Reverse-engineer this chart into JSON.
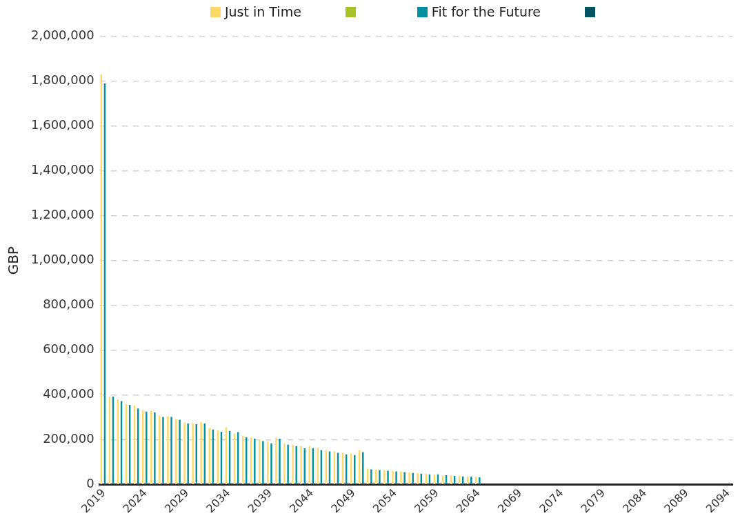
{
  "chart_data": {
    "type": "bar",
    "ylabel": "GBP",
    "categories": [
      "2019",
      null,
      null,
      null,
      null,
      "2024",
      null,
      null,
      null,
      null,
      "2029",
      null,
      null,
      null,
      null,
      "2034",
      null,
      null,
      null,
      null,
      "2039",
      null,
      null,
      null,
      null,
      "2044",
      null,
      null,
      null,
      null,
      "2049",
      null,
      null,
      null,
      null,
      "2054",
      null,
      null,
      null,
      null,
      "2059",
      null,
      null,
      null,
      null,
      "2064",
      null,
      null,
      null,
      null,
      "2069",
      null,
      null,
      null,
      null,
      "2074",
      null,
      null,
      null,
      null,
      "2079",
      null,
      null,
      null,
      null,
      "2084",
      null,
      null,
      null,
      null,
      "2089",
      null,
      null,
      null,
      null,
      "2094"
    ],
    "series": [
      {
        "name": "Just in Time",
        "color": "#ffd966",
        "values": [
          1830000,
          393000,
          380000,
          360000,
          353000,
          333000,
          330000,
          309000,
          305000,
          291000,
          277000,
          273000,
          280000,
          253000,
          243000,
          256000,
          228000,
          218000,
          211000,
          199000,
          192000,
          210000,
          185000,
          178000,
          172000,
          172000,
          165000,
          154000,
          148000,
          142000,
          139000,
          154000,
          71000,
          68000,
          65000,
          62000,
          59000,
          56000,
          52000,
          49000,
          46000,
          42000,
          42000,
          39000,
          36000,
          36000,
          null,
          null,
          null,
          null,
          null,
          null,
          null,
          null,
          null,
          null,
          null,
          null,
          null,
          null,
          null,
          null,
          null,
          null,
          null,
          null,
          null,
          null,
          null,
          null,
          null,
          null,
          null,
          null,
          null,
          null
        ]
      },
      {
        "color": "#a9c22a",
        "values": [
          null,
          null,
          null,
          null,
          null,
          null,
          null,
          null,
          null,
          null,
          null,
          null,
          null,
          null,
          null,
          null,
          null,
          null,
          null,
          null,
          null,
          null,
          null,
          null,
          null,
          null,
          null,
          null,
          null,
          null,
          null,
          null,
          null,
          null,
          null,
          null,
          null,
          null,
          null,
          null,
          null,
          null,
          null,
          null,
          null,
          null,
          null,
          null,
          null,
          null,
          null,
          null,
          null,
          null,
          null,
          null,
          null,
          null,
          null,
          null,
          null,
          null,
          null,
          null,
          null,
          null,
          null,
          null,
          null,
          null,
          null,
          null,
          null,
          null,
          null,
          null
        ]
      },
      {
        "name": "Fit for the Future",
        "color": "#00909e",
        "values": [
          1790000,
          393000,
          373000,
          356000,
          340000,
          326000,
          323000,
          302000,
          302000,
          290000,
          273000,
          270000,
          273000,
          246000,
          236000,
          240000,
          234000,
          211000,
          205000,
          194000,
          184000,
          204000,
          178000,
          172000,
          162000,
          162000,
          154000,
          148000,
          142000,
          135000,
          132000,
          145000,
          68000,
          65000,
          62000,
          59000,
          56000,
          52000,
          49000,
          46000,
          46000,
          42000,
          39000,
          36000,
          36000,
          33000,
          null,
          null,
          null,
          null,
          null,
          null,
          null,
          null,
          null,
          null,
          null,
          null,
          null,
          null,
          null,
          null,
          null,
          null,
          null,
          null,
          null,
          null,
          null,
          null,
          null,
          null,
          null,
          null,
          null,
          null
        ]
      },
      {
        "color": "#00535f",
        "values": [
          null,
          null,
          null,
          null,
          null,
          null,
          null,
          null,
          null,
          null,
          null,
          null,
          null,
          null,
          null,
          null,
          null,
          null,
          null,
          null,
          null,
          null,
          null,
          null,
          null,
          null,
          null,
          null,
          null,
          null,
          null,
          null,
          null,
          null,
          null,
          null,
          null,
          null,
          null,
          null,
          null,
          null,
          null,
          null,
          null,
          null,
          null,
          null,
          null,
          null,
          null,
          null,
          null,
          null,
          null,
          null,
          null,
          null,
          null,
          null,
          null,
          null,
          null,
          null,
          null,
          null,
          null,
          null,
          null,
          null,
          null,
          null,
          null,
          null,
          null,
          null
        ]
      }
    ],
    "ylim": [
      0,
      2000000
    ],
    "yticks": [
      {
        "value": 0,
        "label": "0"
      },
      {
        "value": 200000,
        "label": "200,000"
      },
      {
        "value": 400000,
        "label": "400,000"
      },
      {
        "value": 600000,
        "label": "600,000"
      },
      {
        "value": 800000,
        "label": "800,000"
      },
      {
        "value": 1000000,
        "label": "1,000,000"
      },
      {
        "value": 1200000,
        "label": "1,200,000"
      },
      {
        "value": 1400000,
        "label": "1,400,000"
      },
      {
        "value": 1600000,
        "label": "1,600,000"
      },
      {
        "value": 1800000,
        "label": "1,800,000"
      },
      {
        "value": 2000000,
        "label": "2,000,000"
      }
    ],
    "grid": "y",
    "legend": "top"
  }
}
